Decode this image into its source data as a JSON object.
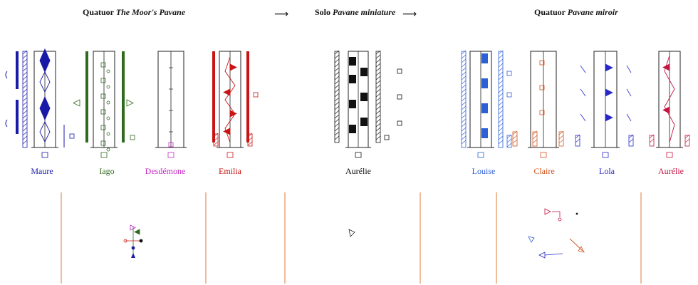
{
  "titles": {
    "left_prefix": "Quatuor",
    "left_title": "The Moor's Pavane",
    "middle_prefix": "Solo",
    "middle_title": "Pavane miniature",
    "right_prefix": "Quatuor",
    "right_title": "Pavane miroir"
  },
  "arrows": [
    "⟶",
    "⟶"
  ],
  "dancers_left": [
    {
      "name": "Maure",
      "color": "#1a1aa8"
    },
    {
      "name": "Iago",
      "color": "#2f6b1e"
    },
    {
      "name": "Desdémone",
      "color": "#c42ac4"
    },
    {
      "name": "Emilia",
      "color": "#c81414"
    }
  ],
  "dancer_middle": {
    "name": "Aurélie",
    "color": "#111111"
  },
  "dancers_right": [
    {
      "name": "Louise",
      "color": "#2d5fd6"
    },
    {
      "name": "Claire",
      "color": "#d2541e"
    },
    {
      "name": "Lola",
      "color": "#2828c8"
    },
    {
      "name": "Aurélie",
      "color": "#c41440"
    }
  ],
  "colors": {
    "floor_line": "#e8a070",
    "staff": "#222222"
  },
  "icons": [
    "staff-symbol-icon",
    "direction-arrow-icon",
    "pin-icon"
  ]
}
